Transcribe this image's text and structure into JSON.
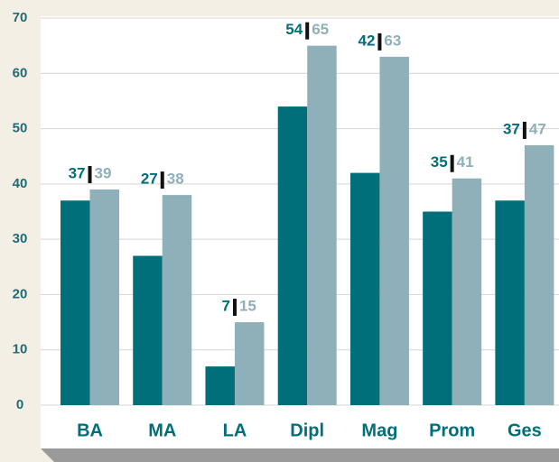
{
  "chart_data": {
    "type": "bar",
    "categories": [
      "BA",
      "MA",
      "LA",
      "Dipl",
      "Mag",
      "Prom",
      "Ges"
    ],
    "series": [
      {
        "color": "#006f79",
        "values": [
          37,
          27,
          7,
          54,
          42,
          35,
          37
        ]
      },
      {
        "color": "#8fb0b8",
        "values": [
          39,
          38,
          15,
          65,
          63,
          41,
          47
        ]
      }
    ],
    "ylim": [
      0,
      70
    ],
    "yticks": [
      0,
      10,
      20,
      30,
      40,
      50,
      60,
      70
    ],
    "grid": true
  }
}
